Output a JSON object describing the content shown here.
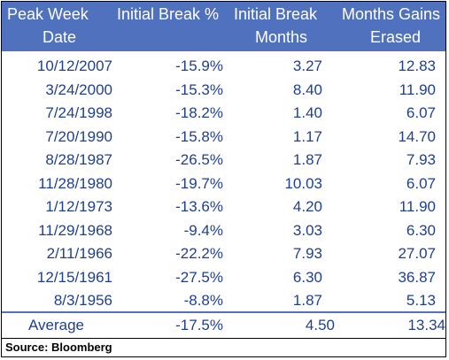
{
  "headers": {
    "peak_week": [
      "Peak Week",
      "Date"
    ],
    "initial_break_pct": [
      "Initial  Break %",
      ""
    ],
    "initial_break_months": [
      "Initial  Break",
      "Months"
    ],
    "months_gains_erased": [
      "Months Gains",
      "Erased"
    ]
  },
  "rows": [
    {
      "date": "10/12/2007",
      "break_pct": "-15.9%",
      "break_months": "3.27",
      "gains_erased": "12.83"
    },
    {
      "date": "3/24/2000",
      "break_pct": "-15.3%",
      "break_months": "8.40",
      "gains_erased": "11.90"
    },
    {
      "date": "7/24/1998",
      "break_pct": "-18.2%",
      "break_months": "1.40",
      "gains_erased": "6.07"
    },
    {
      "date": "7/20/1990",
      "break_pct": "-15.8%",
      "break_months": "1.17",
      "gains_erased": "14.70"
    },
    {
      "date": "8/28/1987",
      "break_pct": "-26.5%",
      "break_months": "1.87",
      "gains_erased": "7.93"
    },
    {
      "date": "11/28/1980",
      "break_pct": "-19.7%",
      "break_months": "10.03",
      "gains_erased": "6.07"
    },
    {
      "date": "1/12/1973",
      "break_pct": "-13.6%",
      "break_months": "4.20",
      "gains_erased": "11.90"
    },
    {
      "date": "11/29/1968",
      "break_pct": "-9.4%",
      "break_months": "3.03",
      "gains_erased": "6.30"
    },
    {
      "date": "2/11/1966",
      "break_pct": "-22.2%",
      "break_months": "7.93",
      "gains_erased": "27.07"
    },
    {
      "date": "12/15/1961",
      "break_pct": "-27.5%",
      "break_months": "6.30",
      "gains_erased": "36.87"
    },
    {
      "date": "8/3/1956",
      "break_pct": "-8.8%",
      "break_months": "1.87",
      "gains_erased": "5.13"
    }
  ],
  "average": {
    "label": "Average",
    "break_pct": "-17.5%",
    "break_months": "4.50",
    "gains_erased": "13.34"
  },
  "source": "Source: Bloomberg",
  "colors": {
    "header_bg": "#4f71be",
    "header_text": "#ffffff",
    "body_text": "#1f3f8f",
    "divider": "#4f71be"
  }
}
